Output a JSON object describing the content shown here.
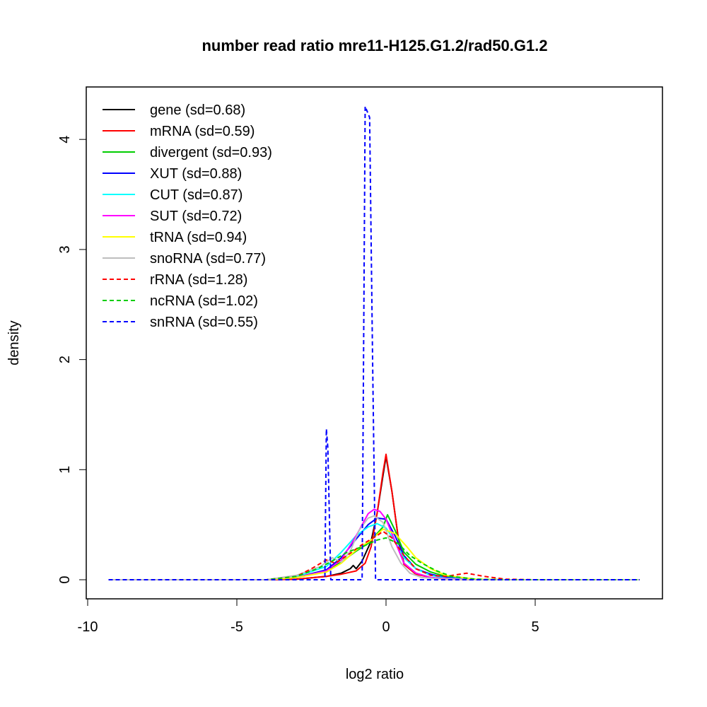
{
  "chart_data": {
    "type": "line",
    "title": "number read ratio mre11-H125.G1.2/rad50.G1.2",
    "xlabel": "log2 ratio",
    "ylabel": "density",
    "xlim": [
      -10,
      9
    ],
    "ylim": [
      0,
      4.4
    ],
    "xticks": [
      -10,
      -5,
      0,
      5
    ],
    "yticks": [
      0,
      1,
      2,
      3,
      4
    ],
    "grid": false,
    "legend_placement": "top-left",
    "series": [
      {
        "name": "gene (sd=0.68)",
        "color": "#000000",
        "dash": false,
        "points": [
          [
            -9.3,
            0
          ],
          [
            -4,
            0
          ],
          [
            -3,
            0.005
          ],
          [
            -2,
            0.03
          ],
          [
            -1.5,
            0.06
          ],
          [
            -1.2,
            0.1
          ],
          [
            -1.1,
            0.13
          ],
          [
            -1,
            0.1
          ],
          [
            -0.8,
            0.17
          ],
          [
            -0.5,
            0.35
          ],
          [
            -0.3,
            0.6
          ],
          [
            -0.1,
            0.95
          ],
          [
            0,
            1.12
          ],
          [
            0.2,
            0.8
          ],
          [
            0.4,
            0.4
          ],
          [
            0.6,
            0.15
          ],
          [
            1,
            0.06
          ],
          [
            1.5,
            0.02
          ],
          [
            2,
            0.005
          ],
          [
            3,
            0
          ],
          [
            8.5,
            0
          ]
        ]
      },
      {
        "name": "mRNA (sd=0.59)",
        "color": "#ff0000",
        "dash": false,
        "points": [
          [
            -9.3,
            0
          ],
          [
            -4,
            0
          ],
          [
            -3,
            0.005
          ],
          [
            -2,
            0.03
          ],
          [
            -1.5,
            0.05
          ],
          [
            -1,
            0.08
          ],
          [
            -0.7,
            0.15
          ],
          [
            -0.5,
            0.3
          ],
          [
            -0.3,
            0.6
          ],
          [
            -0.1,
            0.98
          ],
          [
            0,
            1.14
          ],
          [
            0.2,
            0.8
          ],
          [
            0.4,
            0.4
          ],
          [
            0.6,
            0.14
          ],
          [
            1,
            0.05
          ],
          [
            1.5,
            0.02
          ],
          [
            2,
            0.005
          ],
          [
            3,
            0
          ],
          [
            8.5,
            0
          ]
        ]
      },
      {
        "name": "divergent (sd=0.93)",
        "color": "#00cd00",
        "dash": false,
        "points": [
          [
            -9.3,
            0
          ],
          [
            -4,
            0
          ],
          [
            -3,
            0.02
          ],
          [
            -2,
            0.08
          ],
          [
            -1.5,
            0.16
          ],
          [
            -1,
            0.26
          ],
          [
            -0.6,
            0.33
          ],
          [
            -0.3,
            0.42
          ],
          [
            -0.1,
            0.48
          ],
          [
            0.05,
            0.59
          ],
          [
            0.3,
            0.45
          ],
          [
            0.6,
            0.25
          ],
          [
            1,
            0.14
          ],
          [
            1.5,
            0.07
          ],
          [
            2,
            0.03
          ],
          [
            3,
            0.005
          ],
          [
            4,
            0
          ],
          [
            8.5,
            0
          ]
        ]
      },
      {
        "name": "XUT (sd=0.88)",
        "color": "#0000ff",
        "dash": false,
        "points": [
          [
            -9.3,
            0
          ],
          [
            -4,
            0
          ],
          [
            -3,
            0.02
          ],
          [
            -2,
            0.09
          ],
          [
            -1.5,
            0.2
          ],
          [
            -1,
            0.37
          ],
          [
            -0.6,
            0.5
          ],
          [
            -0.3,
            0.56
          ],
          [
            0,
            0.55
          ],
          [
            0.3,
            0.4
          ],
          [
            0.6,
            0.22
          ],
          [
            1,
            0.1
          ],
          [
            1.5,
            0.05
          ],
          [
            2,
            0.02
          ],
          [
            3,
            0.003
          ],
          [
            4,
            0
          ],
          [
            8.5,
            0
          ]
        ]
      },
      {
        "name": "CUT (sd=0.87)",
        "color": "#00ffff",
        "dash": false,
        "points": [
          [
            -9.3,
            0
          ],
          [
            -4,
            0
          ],
          [
            -3,
            0.03
          ],
          [
            -2,
            0.12
          ],
          [
            -1.5,
            0.25
          ],
          [
            -1,
            0.4
          ],
          [
            -0.6,
            0.48
          ],
          [
            -0.3,
            0.51
          ],
          [
            0,
            0.47
          ],
          [
            0.3,
            0.35
          ],
          [
            0.6,
            0.2
          ],
          [
            1,
            0.1
          ],
          [
            1.5,
            0.04
          ],
          [
            2,
            0.015
          ],
          [
            3,
            0.002
          ],
          [
            4,
            0
          ],
          [
            8.5,
            0
          ]
        ]
      },
      {
        "name": "SUT (sd=0.72)",
        "color": "#ff00ff",
        "dash": false,
        "points": [
          [
            -9.3,
            0
          ],
          [
            -4,
            0
          ],
          [
            -3,
            0.02
          ],
          [
            -2,
            0.08
          ],
          [
            -1.5,
            0.18
          ],
          [
            -1,
            0.4
          ],
          [
            -0.6,
            0.6
          ],
          [
            -0.4,
            0.64
          ],
          [
            -0.2,
            0.62
          ],
          [
            0,
            0.55
          ],
          [
            0.3,
            0.35
          ],
          [
            0.6,
            0.15
          ],
          [
            1,
            0.06
          ],
          [
            1.5,
            0.02
          ],
          [
            2,
            0.01
          ],
          [
            3,
            0
          ],
          [
            8.5,
            0
          ]
        ]
      },
      {
        "name": "tRNA (sd=0.94)",
        "color": "#ffff00",
        "dash": false,
        "points": [
          [
            -9.3,
            0
          ],
          [
            -4,
            0
          ],
          [
            -3,
            0.02
          ],
          [
            -2,
            0.07
          ],
          [
            -1.5,
            0.15
          ],
          [
            -1,
            0.27
          ],
          [
            -0.5,
            0.36
          ],
          [
            -0.1,
            0.46
          ],
          [
            0.3,
            0.42
          ],
          [
            0.7,
            0.3
          ],
          [
            1,
            0.2
          ],
          [
            1.5,
            0.1
          ],
          [
            2,
            0.04
          ],
          [
            3,
            0.005
          ],
          [
            4,
            0
          ],
          [
            8.5,
            0
          ]
        ]
      },
      {
        "name": "snoRNA (sd=0.77)",
        "color": "#bebebe",
        "dash": false,
        "points": [
          [
            -9.3,
            0
          ],
          [
            -4,
            0
          ],
          [
            -3,
            0.04
          ],
          [
            -2.2,
            0.12
          ],
          [
            -1.8,
            0.2
          ],
          [
            -1.5,
            0.16
          ],
          [
            -1.2,
            0.26
          ],
          [
            -0.9,
            0.45
          ],
          [
            -0.6,
            0.56
          ],
          [
            -0.4,
            0.58
          ],
          [
            -0.1,
            0.52
          ],
          [
            0.2,
            0.3
          ],
          [
            0.5,
            0.15
          ],
          [
            0.8,
            0.06
          ],
          [
            1.2,
            0.02
          ],
          [
            2,
            0.005
          ],
          [
            3,
            0
          ],
          [
            8.5,
            0
          ]
        ]
      },
      {
        "name": "rRNA (sd=1.28)",
        "color": "#ff0000",
        "dash": true,
        "points": [
          [
            -9.3,
            0
          ],
          [
            -4,
            0
          ],
          [
            -3,
            0.03
          ],
          [
            -2.5,
            0.1
          ],
          [
            -2,
            0.18
          ],
          [
            -1.7,
            0.15
          ],
          [
            -1.3,
            0.22
          ],
          [
            -0.8,
            0.32
          ],
          [
            -0.3,
            0.4
          ],
          [
            -0.1,
            0.44
          ],
          [
            0.2,
            0.38
          ],
          [
            0.6,
            0.22
          ],
          [
            1,
            0.1
          ],
          [
            1.5,
            0.04
          ],
          [
            2,
            0.03
          ],
          [
            2.7,
            0.06
          ],
          [
            3.3,
            0.03
          ],
          [
            4,
            0.005
          ],
          [
            5,
            0
          ],
          [
            8.5,
            0
          ]
        ]
      },
      {
        "name": "ncRNA (sd=1.02)",
        "color": "#00cd00",
        "dash": true,
        "points": [
          [
            -9.3,
            0
          ],
          [
            -4,
            0
          ],
          [
            -3,
            0.03
          ],
          [
            -2.3,
            0.1
          ],
          [
            -1.8,
            0.17
          ],
          [
            -1.3,
            0.25
          ],
          [
            -0.8,
            0.3
          ],
          [
            -0.3,
            0.36
          ],
          [
            0,
            0.38
          ],
          [
            0.4,
            0.33
          ],
          [
            0.8,
            0.22
          ],
          [
            1.2,
            0.15
          ],
          [
            1.7,
            0.08
          ],
          [
            2.2,
            0.03
          ],
          [
            3,
            0.005
          ],
          [
            4,
            0
          ],
          [
            8.5,
            0
          ]
        ]
      },
      {
        "name": "snRNA (sd=0.55)",
        "color": "#0000ff",
        "dash": true,
        "points": [
          [
            -9.3,
            0
          ],
          [
            -2.05,
            0
          ],
          [
            -2.0,
            1.37
          ],
          [
            -1.95,
            1.2
          ],
          [
            -1.85,
            0
          ],
          [
            -0.8,
            0
          ],
          [
            -0.7,
            4.3
          ],
          [
            -0.55,
            4.2
          ],
          [
            -0.45,
            2.0
          ],
          [
            -0.35,
            0
          ],
          [
            8.5,
            0
          ]
        ]
      }
    ]
  }
}
